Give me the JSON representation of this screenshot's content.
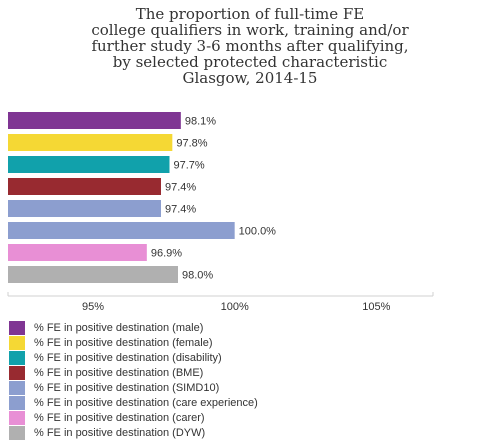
{
  "chart_data": {
    "type": "bar",
    "orientation": "horizontal",
    "title_lines": [
      "The proportion of full-time FE",
      "college qualifiers in work, training and/or",
      "further study 3-6 months after qualifying,",
      "by selected protected characteristic",
      "Glasgow, 2014-15"
    ],
    "categories": [
      "% FE in positive destination (male)",
      "% FE in positive destination (female)",
      "% FE in positive destination (disability)",
      "% FE in positive destination (BME)",
      "% FE in positive destination (SIMD10)",
      "% FE in positive destination (care experience)",
      "% FE in positive destination (carer)",
      "% FE in positive destination (DYW)"
    ],
    "values": [
      98.1,
      97.8,
      97.7,
      97.4,
      97.4,
      100.0,
      96.9,
      98.0
    ],
    "value_labels": [
      "98.1%",
      "97.8%",
      "97.7%",
      "97.4%",
      "97.4%",
      "100.0%",
      "96.9%",
      "98.0%"
    ],
    "colors": [
      "#7f3593",
      "#f5d834",
      "#11a1ab",
      "#982a30",
      "#8c9ecf",
      "#8c9ecf",
      "#e88fd5",
      "#b0b0b0"
    ],
    "xlim": [
      92,
      107
    ],
    "xticks": [
      95,
      100,
      105
    ],
    "xtick_labels": [
      "95%",
      "100%",
      "105%"
    ],
    "grid": false,
    "legend_position": "bottom"
  }
}
